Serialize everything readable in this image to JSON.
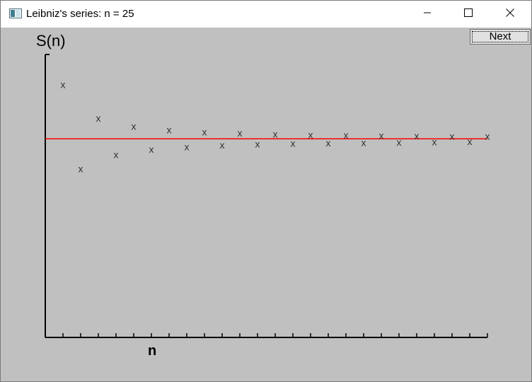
{
  "window": {
    "title": "Leibniz's series: n = 25",
    "controls": {
      "minimize": "minimize-icon",
      "maximize": "maximize-icon",
      "close": "close-icon"
    }
  },
  "toolbar": {
    "next_label": "Next"
  },
  "chart_data": {
    "type": "scatter",
    "ylabel": "S(n)",
    "xlabel": "n",
    "marker": "x",
    "x_ticks": 25,
    "x": [
      1,
      2,
      3,
      4,
      5,
      6,
      7,
      8,
      9,
      10,
      11,
      12,
      13,
      14,
      15,
      16,
      17,
      18,
      19,
      20,
      21,
      22,
      23,
      24,
      25
    ],
    "y": [
      1.0,
      0.6667,
      0.8667,
      0.7238,
      0.8349,
      0.744,
      0.8209,
      0.7543,
      0.8131,
      0.7605,
      0.8081,
      0.7646,
      0.8046,
      0.7675,
      0.802,
      0.7697,
      0.8,
      0.7715,
      0.7985,
      0.7729,
      0.7972,
      0.774,
      0.7962,
      0.775,
      0.7954
    ],
    "reference_line": {
      "y": 0.7854,
      "color": "#ff0000"
    },
    "ylim": [
      0,
      1.1
    ],
    "colors": {
      "axis": "#000000",
      "marker": "#333333",
      "background": "#c0c0c0"
    }
  }
}
